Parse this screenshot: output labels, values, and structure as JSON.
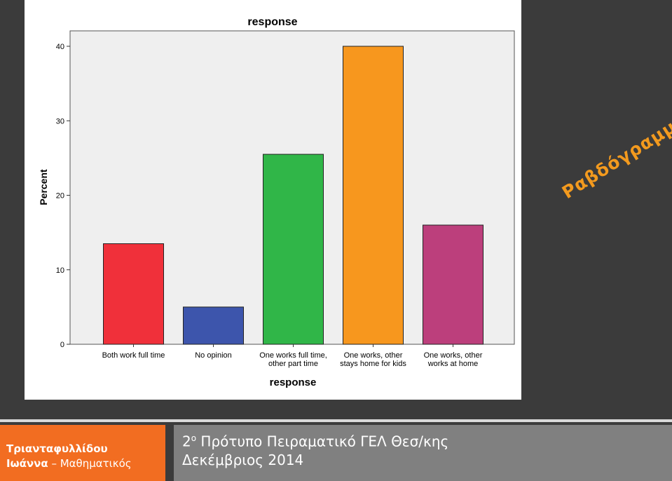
{
  "slide_title": "Ραβδόγραμμα",
  "footer": {
    "author_line1": "Τριανταφυλλίδου",
    "author_line2_bold": "Ιωάννα",
    "author_line2_rest": " – Μαθηματικός",
    "school_num": "2",
    "school_sup": "ο",
    "school_rest": " Πρότυπο Πειραματικό ΓΕΛ Θεσ/κης",
    "date": "Δεκέμβριος 2014"
  },
  "colors": {
    "accent_orange": "#f26d21",
    "title_orange": "#f39a1e",
    "footer_gray": "#808080",
    "plot_bg": "#efefef"
  },
  "chart_data": {
    "type": "bar",
    "title": "response",
    "xlabel": "response",
    "ylabel": "Percent",
    "ylim": [
      0,
      40
    ],
    "yticks": [
      0,
      10,
      20,
      30,
      40
    ],
    "grid": false,
    "categories": [
      [
        "Both work full time"
      ],
      [
        "No opinion"
      ],
      [
        "One works full time,",
        "other part time"
      ],
      [
        "One works, other",
        "stays home for kids"
      ],
      [
        "One works, other",
        "works at home"
      ]
    ],
    "values": [
      13.5,
      5.0,
      25.5,
      40.0,
      16.0
    ],
    "bar_colors": [
      "#f0303a",
      "#3d55ac",
      "#30b648",
      "#f7971e",
      "#bc3f7c"
    ]
  }
}
